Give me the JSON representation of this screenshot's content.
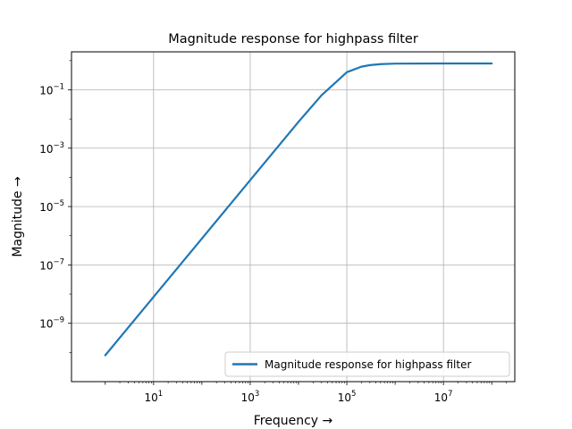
{
  "chart_data": {
    "type": "line",
    "title": "Magnitude response for highpass filter",
    "xlabel": "Frequency →",
    "ylabel": "Magnitude →",
    "xscale": "log",
    "yscale": "log",
    "xlim": [
      0.2,
      300000000
    ],
    "ylim": [
      1e-11,
      2
    ],
    "grid": true,
    "legend_position": "lower-right",
    "x_ticks": [
      {
        "value": 10,
        "base": "10",
        "exp": "1"
      },
      {
        "value": 1000,
        "base": "10",
        "exp": "3"
      },
      {
        "value": 100000,
        "base": "10",
        "exp": "5"
      },
      {
        "value": 10000000,
        "base": "10",
        "exp": "7"
      }
    ],
    "y_ticks": [
      {
        "value": 0.1,
        "base": "10",
        "exp": "−1"
      },
      {
        "value": 0.001,
        "base": "10",
        "exp": "−3"
      },
      {
        "value": 1e-05,
        "base": "10",
        "exp": "−5"
      },
      {
        "value": 1e-07,
        "base": "10",
        "exp": "−7"
      },
      {
        "value": 1e-09,
        "base": "10",
        "exp": "−9"
      }
    ],
    "series": [
      {
        "name": "Magnitude response for highpass filter",
        "color": "#1f77b4",
        "x": [
          1,
          10,
          100,
          1000,
          10000,
          30000,
          100000,
          200000,
          300000,
          500000,
          1000000,
          10000000,
          100000000
        ],
        "y": [
          8e-11,
          8e-09,
          8e-07,
          8e-05,
          0.008,
          0.065,
          0.4,
          0.62,
          0.7,
          0.76,
          0.79,
          0.8,
          0.8
        ]
      }
    ]
  }
}
